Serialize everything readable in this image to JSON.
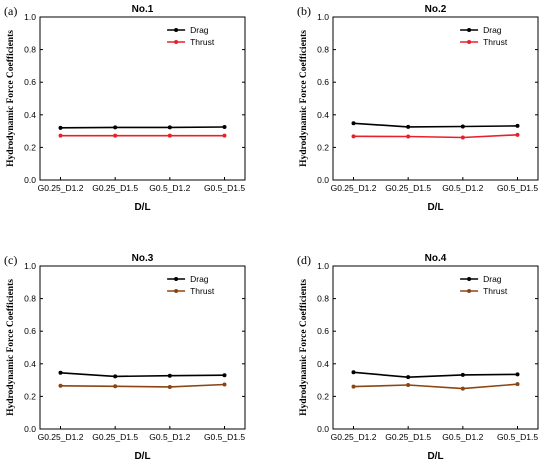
{
  "chart_data": [
    {
      "type": "line",
      "panel_label": "(a)",
      "title": "No.1",
      "xlabel": "D/L",
      "ylabel": "Hydrodynamic Force Coefficients",
      "categories": [
        "G0.25_D1.2",
        "G0.25_D1.5",
        "G0.5_D1.2",
        "G0.5_D1.5"
      ],
      "ylim": [
        0,
        1.0
      ],
      "yticks": [
        "0.0",
        "0.2",
        "0.4",
        "0.6",
        "0.8",
        "1.0"
      ],
      "legend_position": "top-right",
      "series": [
        {
          "name": "Drag",
          "color": "#000000",
          "values": [
            0.32,
            0.323,
            0.323,
            0.325
          ]
        },
        {
          "name": "Thrust",
          "color": "#e8202a",
          "values": [
            0.272,
            0.272,
            0.272,
            0.272
          ]
        }
      ]
    },
    {
      "type": "line",
      "panel_label": "(b)",
      "title": "No.2",
      "xlabel": "D/L",
      "ylabel": "Hydrodynamic Force Coefficients",
      "categories": [
        "G0.25_D1.2",
        "G0.25_D1.5",
        "G0.5_D1.2",
        "G0.5_D1.5"
      ],
      "ylim": [
        0,
        1.0
      ],
      "yticks": [
        "0.0",
        "0.2",
        "0.4",
        "0.6",
        "0.8",
        "1.0"
      ],
      "legend_position": "top-right",
      "series": [
        {
          "name": "Drag",
          "color": "#000000",
          "values": [
            0.348,
            0.326,
            0.328,
            0.332
          ]
        },
        {
          "name": "Thrust",
          "color": "#e8202a",
          "values": [
            0.268,
            0.267,
            0.261,
            0.277
          ]
        }
      ]
    },
    {
      "type": "line",
      "panel_label": "(c)",
      "title": "No.3",
      "xlabel": "D/L",
      "ylabel": "Hydrodynamic Force Coefficients",
      "categories": [
        "G0.25_D1.2",
        "G0.25_D1.5",
        "G0.5_D1.2",
        "G0.5_D1.5"
      ],
      "ylim": [
        0,
        1.0
      ],
      "yticks": [
        "0.0",
        "0.2",
        "0.4",
        "0.6",
        "0.8",
        "1.0"
      ],
      "legend_position": "top-right",
      "series": [
        {
          "name": "Drag",
          "color": "#000000",
          "values": [
            0.345,
            0.323,
            0.327,
            0.33
          ]
        },
        {
          "name": "Thrust",
          "color": "#8b4513",
          "values": [
            0.265,
            0.262,
            0.258,
            0.273
          ]
        }
      ]
    },
    {
      "type": "line",
      "panel_label": "(d)",
      "title": "No.4",
      "xlabel": "D/L",
      "ylabel": "Hydrodynamic Force Coefficients",
      "categories": [
        "G0.25_D1.2",
        "G0.25_D1.5",
        "G0.5_D1.2",
        "G0.5_D1.5"
      ],
      "ylim": [
        0,
        1.0
      ],
      "yticks": [
        "0.0",
        "0.2",
        "0.4",
        "0.6",
        "0.8",
        "1.0"
      ],
      "legend_position": "top-right",
      "series": [
        {
          "name": "Drag",
          "color": "#000000",
          "values": [
            0.348,
            0.318,
            0.332,
            0.335
          ]
        },
        {
          "name": "Thrust",
          "color": "#8b4513",
          "values": [
            0.26,
            0.27,
            0.248,
            0.275
          ]
        }
      ]
    }
  ]
}
